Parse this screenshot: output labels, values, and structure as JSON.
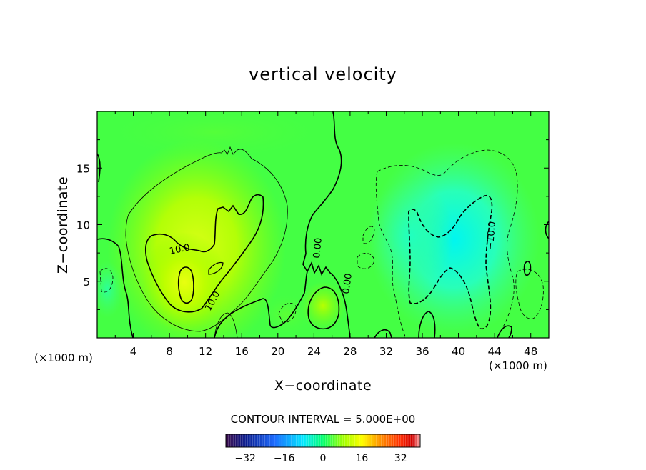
{
  "chart_data": {
    "type": "heatmap",
    "title": "vertical velocity",
    "xlabel": "X−coordinate",
    "ylabel": "Z−coordinate",
    "x_unit": "(×1000 m)",
    "z_unit": "(×1000 m)",
    "xlim": [
      0,
      50
    ],
    "ylim": [
      0,
      20
    ],
    "x_ticks": [
      4,
      8,
      12,
      16,
      20,
      24,
      28,
      32,
      36,
      40,
      44,
      48
    ],
    "x_tick_labels": [
      "4",
      "8",
      "12",
      "16",
      "20",
      "24",
      "28",
      "32",
      "36",
      "40",
      "44",
      "48"
    ],
    "y_ticks": [
      5,
      10,
      15
    ],
    "y_tick_labels": [
      "5",
      "10",
      "15"
    ],
    "contour_interval_text": "CONTOUR INTERVAL = 5.000E+00",
    "contour_interval": 5.0,
    "color_scale": {
      "min": -40,
      "max": 40,
      "ticks": [
        -32,
        -16,
        0,
        16,
        32
      ],
      "tick_labels": [
        "−32",
        "−16",
        "0",
        "16",
        "32"
      ],
      "colors": [
        "#3a0a4a",
        "#0a1a8c",
        "#1e6cff",
        "#00e8ff",
        "#00ff6a",
        "#9cff00",
        "#ffff00",
        "#ff8c00",
        "#ff2a00",
        "#d00000",
        "#ffb0b0"
      ]
    },
    "contour_labels": [
      "10.0",
      "10.0",
      "0.00",
      "0.00",
      "−10.0"
    ],
    "features": [
      {
        "kind": "updraft",
        "x": 10,
        "z": 5,
        "peak": 17
      },
      {
        "kind": "updraft",
        "x": 25,
        "z": 2.5,
        "peak": 6
      },
      {
        "kind": "downdraft",
        "x": 40,
        "z": 7.5,
        "peak": -13
      },
      {
        "kind": "downdraft",
        "x": 35,
        "z": 9,
        "peak": -9
      }
    ]
  }
}
